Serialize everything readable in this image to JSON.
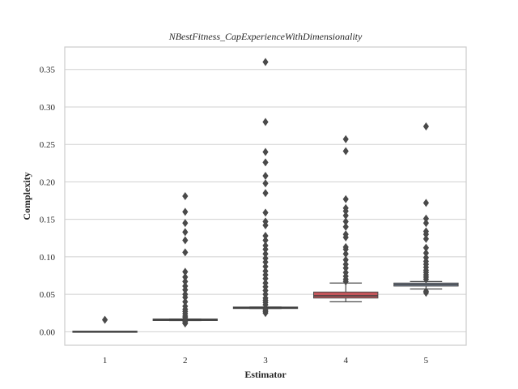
{
  "chart_data": {
    "type": "box",
    "title": "NBestFitness_CapExperienceWithDimensionality",
    "xlabel": "Estimator",
    "ylabel": "Complexity",
    "categories": [
      "1",
      "2",
      "3",
      "4",
      "5"
    ],
    "ylim": [
      -0.018,
      0.38
    ],
    "yticks": [
      0.0,
      0.05,
      0.1,
      0.15,
      0.2,
      0.25,
      0.3,
      0.35
    ],
    "ytick_labels": [
      "0.00",
      "0.05",
      "0.10",
      "0.15",
      "0.20",
      "0.25",
      "0.30",
      "0.35"
    ],
    "grid": true,
    "boxes": [
      {
        "category": "1",
        "color": "#5b7fa8",
        "whislo": 0.0,
        "q1": 0.0,
        "med": 0.0,
        "q3": 0.0,
        "whishi": 0.0,
        "fliers": [
          0.016
        ]
      },
      {
        "category": "2",
        "color": "#6f9a6f",
        "whislo": 0.015,
        "q1": 0.015,
        "med": 0.016,
        "q3": 0.017,
        "whishi": 0.017,
        "fliers": [
          0.011,
          0.012,
          0.014,
          0.019,
          0.021,
          0.024,
          0.027,
          0.03,
          0.034,
          0.04,
          0.046,
          0.05,
          0.056,
          0.061,
          0.067,
          0.073,
          0.08,
          0.106,
          0.122,
          0.133,
          0.145,
          0.16,
          0.181
        ]
      },
      {
        "category": "3",
        "color": "#7a9aa6",
        "whislo": 0.031,
        "q1": 0.031,
        "med": 0.032,
        "q3": 0.033,
        "whishi": 0.033,
        "fliers": [
          0.025,
          0.027,
          0.029,
          0.036,
          0.039,
          0.042,
          0.045,
          0.05,
          0.055,
          0.06,
          0.065,
          0.071,
          0.076,
          0.081,
          0.087,
          0.093,
          0.098,
          0.104,
          0.11,
          0.115,
          0.122,
          0.128,
          0.142,
          0.147,
          0.159,
          0.185,
          0.198,
          0.208,
          0.226,
          0.24,
          0.28,
          0.36
        ]
      },
      {
        "category": "4",
        "color": "#c5565b",
        "whislo": 0.04,
        "q1": 0.045,
        "med": 0.048,
        "q3": 0.053,
        "whishi": 0.065,
        "fliers": [
          0.067,
          0.07,
          0.074,
          0.079,
          0.085,
          0.09,
          0.096,
          0.104,
          0.11,
          0.113,
          0.126,
          0.13,
          0.14,
          0.147,
          0.155,
          0.161,
          0.165,
          0.177,
          0.241,
          0.257
        ]
      },
      {
        "category": "5",
        "color": "#8ca0bd",
        "whislo": 0.057,
        "q1": 0.061,
        "med": 0.063,
        "q3": 0.065,
        "whishi": 0.067,
        "fliers": [
          0.052,
          0.054,
          0.07,
          0.073,
          0.076,
          0.079,
          0.082,
          0.086,
          0.09,
          0.094,
          0.099,
          0.105,
          0.112,
          0.124,
          0.13,
          0.134,
          0.145,
          0.151,
          0.172,
          0.274
        ]
      }
    ]
  }
}
